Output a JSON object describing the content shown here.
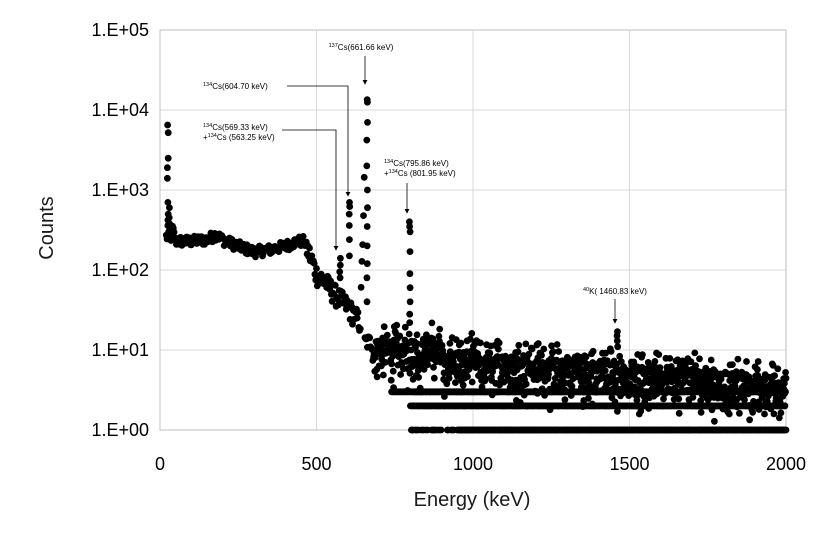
{
  "chart_data": {
    "type": "scatter",
    "title": "",
    "xlabel": "Energy (keV)",
    "ylabel": "Counts",
    "xlim": [
      0,
      2000
    ],
    "ylim": [
      1,
      100000
    ],
    "y_scale": "log",
    "grid": true,
    "legend": "none",
    "marker_color": "#000000",
    "x_ticks": [
      {
        "value": 0,
        "label": "0"
      },
      {
        "value": 500,
        "label": "500"
      },
      {
        "value": 1000,
        "label": "1000"
      },
      {
        "value": 1500,
        "label": "1500"
      },
      {
        "value": 2000,
        "label": "2000"
      }
    ],
    "y_ticks": [
      {
        "value": 1,
        "label": "1.E+00"
      },
      {
        "value": 10,
        "label": "1.E+01"
      },
      {
        "value": 100,
        "label": "1.E+02"
      },
      {
        "value": 1000,
        "label": "1.E+03"
      },
      {
        "value": 10000,
        "label": "1.E+04"
      },
      {
        "value": 100000,
        "label": "1.E+05"
      }
    ],
    "annotations": [
      {
        "sup1": "137",
        "text1": "Cs(661.66 keV)",
        "sup2": "",
        "text2": "",
        "target_x": 662,
        "target_y": 13000
      },
      {
        "sup1": "134",
        "text1": "Cs(604.70 keV)",
        "sup2": "",
        "text2": "",
        "target_x": 605,
        "target_y": 700
      },
      {
        "sup1": "134",
        "text1": "Cs(569.33 keV)",
        "sup2": "134",
        "text2": "Cs (563.25 keV)",
        "target_x": 566,
        "target_y": 150
      },
      {
        "sup1": "134",
        "text1": "Cs(795.86 keV)",
        "sup2": "134",
        "text2": "Cs (801.95 keV)",
        "target_x": 798,
        "target_y": 400
      },
      {
        "sup1": "40",
        "text1": "K( 1460.83 keV)",
        "sup2": "",
        "text2": "",
        "target_x": 1461,
        "target_y": 17
      }
    ],
    "anchor_points": [
      {
        "x": 20,
        "y": 200
      },
      {
        "x": 25,
        "y": 6500
      },
      {
        "x": 30,
        "y": 2000
      },
      {
        "x": 35,
        "y": 400
      },
      {
        "x": 50,
        "y": 230
      },
      {
        "x": 100,
        "y": 230
      },
      {
        "x": 150,
        "y": 240
      },
      {
        "x": 180,
        "y": 280
      },
      {
        "x": 200,
        "y": 240
      },
      {
        "x": 250,
        "y": 200
      },
      {
        "x": 300,
        "y": 170
      },
      {
        "x": 350,
        "y": 180
      },
      {
        "x": 400,
        "y": 200
      },
      {
        "x": 440,
        "y": 230
      },
      {
        "x": 460,
        "y": 230
      },
      {
        "x": 480,
        "y": 150
      },
      {
        "x": 500,
        "y": 90
      },
      {
        "x": 530,
        "y": 70
      },
      {
        "x": 560,
        "y": 50
      },
      {
        "x": 600,
        "y": 35
      },
      {
        "x": 640,
        "y": 22
      },
      {
        "x": 660,
        "y": 13000
      },
      {
        "x": 680,
        "y": 12
      },
      {
        "x": 720,
        "y": 10
      },
      {
        "x": 798,
        "y": 400
      },
      {
        "x": 850,
        "y": 9
      },
      {
        "x": 1000,
        "y": 7
      },
      {
        "x": 1200,
        "y": 5
      },
      {
        "x": 1461,
        "y": 17
      },
      {
        "x": 1500,
        "y": 4
      },
      {
        "x": 1760,
        "y": 7
      },
      {
        "x": 2000,
        "y": 3
      }
    ]
  }
}
